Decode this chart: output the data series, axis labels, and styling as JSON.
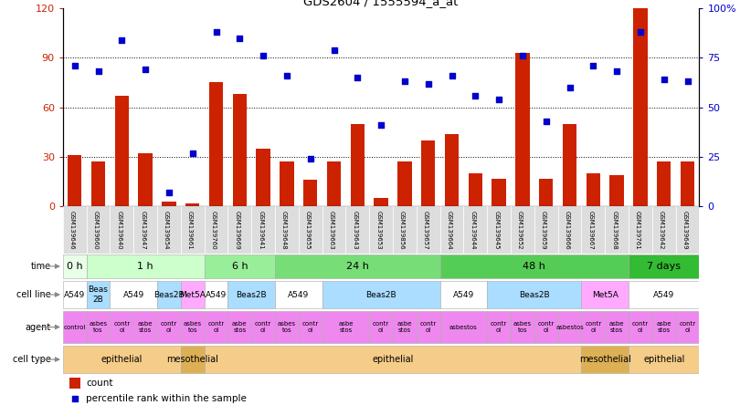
{
  "title": "GDS2604 / 1555594_a_at",
  "samples": [
    "GSM139646",
    "GSM139660",
    "GSM139640",
    "GSM139647",
    "GSM139654",
    "GSM139661",
    "GSM139760",
    "GSM139669",
    "GSM139641",
    "GSM139648",
    "GSM139655",
    "GSM139663",
    "GSM139643",
    "GSM139653",
    "GSM139856",
    "GSM139657",
    "GSM139664",
    "GSM139644",
    "GSM139645",
    "GSM139652",
    "GSM139659",
    "GSM139666",
    "GSM139667",
    "GSM139668",
    "GSM139761",
    "GSM139642",
    "GSM139649"
  ],
  "counts": [
    31,
    27,
    67,
    32,
    3,
    2,
    75,
    68,
    35,
    27,
    16,
    27,
    50,
    5,
    27,
    40,
    44,
    20,
    17,
    93,
    17,
    50,
    20,
    19,
    120,
    27,
    27
  ],
  "percentiles": [
    71,
    68,
    84,
    69,
    7,
    27,
    88,
    85,
    76,
    66,
    24,
    79,
    65,
    41,
    63,
    62,
    66,
    56,
    54,
    76,
    43,
    60,
    71,
    68,
    88,
    64,
    63
  ],
  "bar_color": "#cc2200",
  "dot_color": "#0000cc",
  "time_groups": [
    {
      "label": "0 h",
      "start": 0,
      "end": 1,
      "color": "#e8ffe8"
    },
    {
      "label": "1 h",
      "start": 1,
      "end": 6,
      "color": "#ccffcc"
    },
    {
      "label": "6 h",
      "start": 6,
      "end": 9,
      "color": "#99ee99"
    },
    {
      "label": "24 h",
      "start": 9,
      "end": 16,
      "color": "#77dd77"
    },
    {
      "label": "48 h",
      "start": 16,
      "end": 24,
      "color": "#55cc55"
    },
    {
      "label": "7 days",
      "start": 24,
      "end": 27,
      "color": "#33bb33"
    }
  ],
  "cell_line_groups": [
    {
      "label": "A549",
      "start": 0,
      "end": 1,
      "color": "#ffffff"
    },
    {
      "label": "Beas\n2B",
      "start": 1,
      "end": 2,
      "color": "#aaddff"
    },
    {
      "label": "A549",
      "start": 2,
      "end": 4,
      "color": "#ffffff"
    },
    {
      "label": "Beas2B",
      "start": 4,
      "end": 5,
      "color": "#aaddff"
    },
    {
      "label": "Met5A",
      "start": 5,
      "end": 6,
      "color": "#ffaaff"
    },
    {
      "label": "A549",
      "start": 6,
      "end": 7,
      "color": "#ffffff"
    },
    {
      "label": "Beas2B",
      "start": 7,
      "end": 9,
      "color": "#aaddff"
    },
    {
      "label": "A549",
      "start": 9,
      "end": 11,
      "color": "#ffffff"
    },
    {
      "label": "Beas2B",
      "start": 11,
      "end": 16,
      "color": "#aaddff"
    },
    {
      "label": "A549",
      "start": 16,
      "end": 18,
      "color": "#ffffff"
    },
    {
      "label": "Beas2B",
      "start": 18,
      "end": 22,
      "color": "#aaddff"
    },
    {
      "label": "Met5A",
      "start": 22,
      "end": 24,
      "color": "#ffaaff"
    },
    {
      "label": "A549",
      "start": 24,
      "end": 27,
      "color": "#ffffff"
    }
  ],
  "agent_groups": [
    {
      "label": "control",
      "start": 0,
      "end": 1,
      "color": "#ee88ee"
    },
    {
      "label": "asbes\ntos",
      "start": 1,
      "end": 2,
      "color": "#ee88ee"
    },
    {
      "label": "contr\nol",
      "start": 2,
      "end": 3,
      "color": "#ee88ee"
    },
    {
      "label": "asbe\nstos",
      "start": 3,
      "end": 4,
      "color": "#ee88ee"
    },
    {
      "label": "contr\nol",
      "start": 4,
      "end": 5,
      "color": "#ee88ee"
    },
    {
      "label": "asbes\ntos",
      "start": 5,
      "end": 6,
      "color": "#ee88ee"
    },
    {
      "label": "contr\nol",
      "start": 6,
      "end": 7,
      "color": "#ee88ee"
    },
    {
      "label": "asbe\nstos",
      "start": 7,
      "end": 8,
      "color": "#ee88ee"
    },
    {
      "label": "contr\nol",
      "start": 8,
      "end": 9,
      "color": "#ee88ee"
    },
    {
      "label": "asbes\ntos",
      "start": 9,
      "end": 10,
      "color": "#ee88ee"
    },
    {
      "label": "contr\nol",
      "start": 10,
      "end": 11,
      "color": "#ee88ee"
    },
    {
      "label": "asbe\nstos",
      "start": 11,
      "end": 13,
      "color": "#ee88ee"
    },
    {
      "label": "contr\nol",
      "start": 13,
      "end": 14,
      "color": "#ee88ee"
    },
    {
      "label": "asbe\nstos",
      "start": 14,
      "end": 15,
      "color": "#ee88ee"
    },
    {
      "label": "contr\nol",
      "start": 15,
      "end": 16,
      "color": "#ee88ee"
    },
    {
      "label": "asbestos",
      "start": 16,
      "end": 18,
      "color": "#ee88ee"
    },
    {
      "label": "contr\nol",
      "start": 18,
      "end": 19,
      "color": "#ee88ee"
    },
    {
      "label": "asbes\ntos",
      "start": 19,
      "end": 20,
      "color": "#ee88ee"
    },
    {
      "label": "contr\nol",
      "start": 20,
      "end": 21,
      "color": "#ee88ee"
    },
    {
      "label": "asbestos",
      "start": 21,
      "end": 22,
      "color": "#ee88ee"
    },
    {
      "label": "contr\nol",
      "start": 22,
      "end": 23,
      "color": "#ee88ee"
    },
    {
      "label": "asbe\nstos",
      "start": 23,
      "end": 24,
      "color": "#ee88ee"
    },
    {
      "label": "contr\nol",
      "start": 24,
      "end": 25,
      "color": "#ee88ee"
    },
    {
      "label": "asbe\nstos",
      "start": 25,
      "end": 26,
      "color": "#ee88ee"
    },
    {
      "label": "contr\nol",
      "start": 26,
      "end": 27,
      "color": "#ee88ee"
    }
  ],
  "cell_type_groups": [
    {
      "label": "epithelial",
      "start": 0,
      "end": 5,
      "color": "#f5cc88"
    },
    {
      "label": "mesothelial",
      "start": 5,
      "end": 6,
      "color": "#ddb055"
    },
    {
      "label": "epithelial",
      "start": 6,
      "end": 22,
      "color": "#f5cc88"
    },
    {
      "label": "mesothelial",
      "start": 22,
      "end": 24,
      "color": "#ddb055"
    },
    {
      "label": "epithelial",
      "start": 24,
      "end": 27,
      "color": "#f5cc88"
    }
  ],
  "ylim_left": [
    0,
    120
  ],
  "ylim_right": [
    0,
    100
  ],
  "yticks_left": [
    0,
    30,
    60,
    90,
    120
  ],
  "ytick_labels_left": [
    "0",
    "30",
    "60",
    "90",
    "120"
  ],
  "yticks_right": [
    0,
    25,
    50,
    75,
    100
  ],
  "ytick_labels_right": [
    "0",
    "25",
    "50",
    "75",
    "100%"
  ]
}
